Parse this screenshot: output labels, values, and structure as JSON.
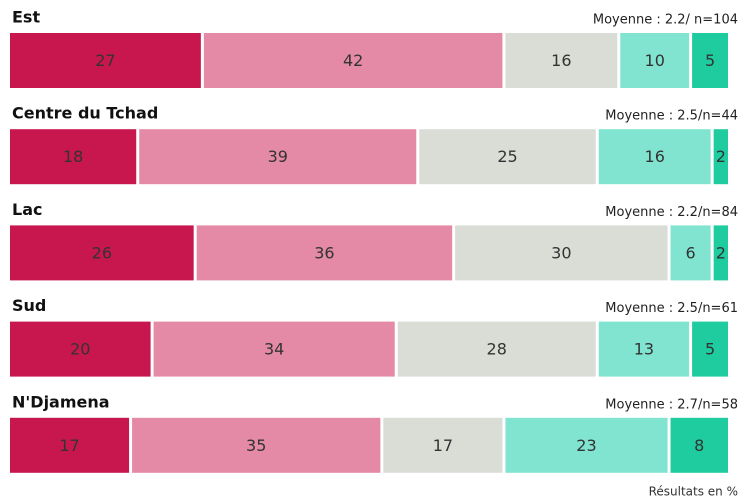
{
  "chart_data": {
    "type": "bar",
    "orientation": "horizontal",
    "stacked": true,
    "categories": [
      "Est",
      "Centre du Tchad",
      "Lac",
      "Sud",
      "N'Djamena"
    ],
    "annotations": [
      "Moyenne : 2.2/ n=104",
      "Moyenne : 2.5/n=44",
      "Moyenne : 2.2/n=84",
      "Moyenne : 2.5/n=61",
      "Moyenne :  2.7/n=58"
    ],
    "series": [
      {
        "color": "#c8174f",
        "values": [
          27,
          18,
          26,
          20,
          17
        ]
      },
      {
        "color": "#e48aa7",
        "values": [
          42,
          39,
          36,
          34,
          35
        ]
      },
      {
        "color": "#d9ddd6",
        "values": [
          16,
          25,
          30,
          28,
          17
        ]
      },
      {
        "color": "#80e4d0",
        "values": [
          10,
          16,
          6,
          13,
          23
        ]
      },
      {
        "color": "#1fcc9f",
        "values": [
          5,
          2,
          2,
          5,
          8
        ]
      }
    ],
    "xlim": [
      0,
      100
    ],
    "footnote": "Résultats en %"
  }
}
